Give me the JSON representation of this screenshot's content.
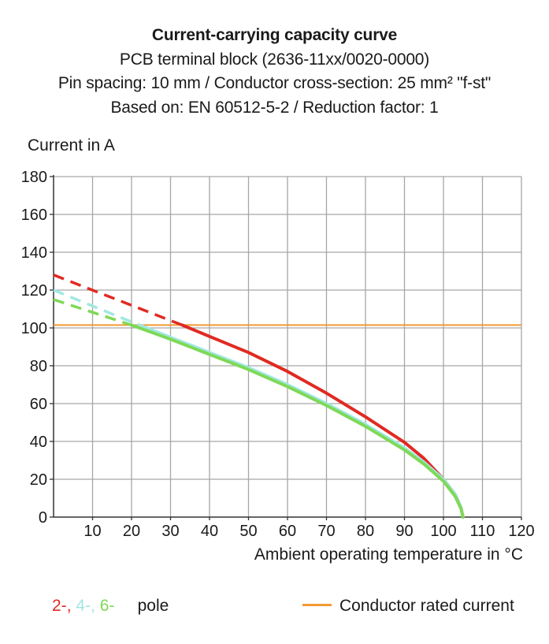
{
  "chart_data": {
    "type": "line",
    "title": "Current-carrying capacity curve",
    "subtitles": [
      "PCB terminal block (2636-11xx/0020-0000)",
      "Pin spacing: 10 mm / Conductor cross-section: 25 mm² \"f-st\"",
      "Based on: EN 60512-5-2 / Reduction factor: 1"
    ],
    "xlabel": "Ambient operating temperature in °C",
    "ylabel": "Current in A",
    "xlim": [
      0,
      120
    ],
    "ylim": [
      0,
      180
    ],
    "xticks": [
      10,
      20,
      30,
      40,
      50,
      60,
      70,
      80,
      90,
      100,
      110,
      120
    ],
    "yticks": [
      0,
      20,
      40,
      60,
      80,
      100,
      120,
      140,
      160,
      180
    ],
    "grid": true,
    "rated_current": {
      "name": "Conductor rated current",
      "value": 101.5,
      "color": "#f39a33"
    },
    "series": [
      {
        "name": "2-",
        "color": "#e02a22",
        "dashed": {
          "x": [
            0,
            33
          ],
          "y": [
            128,
            101.5
          ]
        },
        "solid": {
          "x": [
            33,
            40,
            50,
            60,
            70,
            80,
            90,
            95,
            100,
            103,
            104.5,
            105
          ],
          "y": [
            101.5,
            95.5,
            87,
            77,
            65.5,
            53,
            39.5,
            31,
            20,
            12,
            5,
            0
          ]
        }
      },
      {
        "name": "4-",
        "color": "#a0e8e2",
        "dashed": {
          "x": [
            0,
            22
          ],
          "y": [
            120,
            101.5
          ]
        },
        "solid": {
          "x": [
            22,
            30,
            40,
            50,
            60,
            70,
            80,
            90,
            95,
            100,
            103,
            104.5,
            105
          ],
          "y": [
            101.5,
            95,
            87,
            79,
            70,
            60,
            49,
            36.5,
            29,
            20,
            12,
            5,
            0
          ]
        }
      },
      {
        "name": "6-",
        "color": "#7ed957",
        "dashed": {
          "x": [
            0,
            20
          ],
          "y": [
            115,
            101.5
          ]
        },
        "solid": {
          "x": [
            20,
            30,
            40,
            50,
            60,
            70,
            80,
            90,
            95,
            100,
            103,
            104.5,
            105
          ],
          "y": [
            101.5,
            94,
            86,
            78,
            69,
            59,
            48,
            35.5,
            28,
            19,
            11,
            4.5,
            0
          ]
        }
      }
    ],
    "legend": {
      "pole_label": "pole",
      "rated_label": "Conductor rated current"
    }
  }
}
